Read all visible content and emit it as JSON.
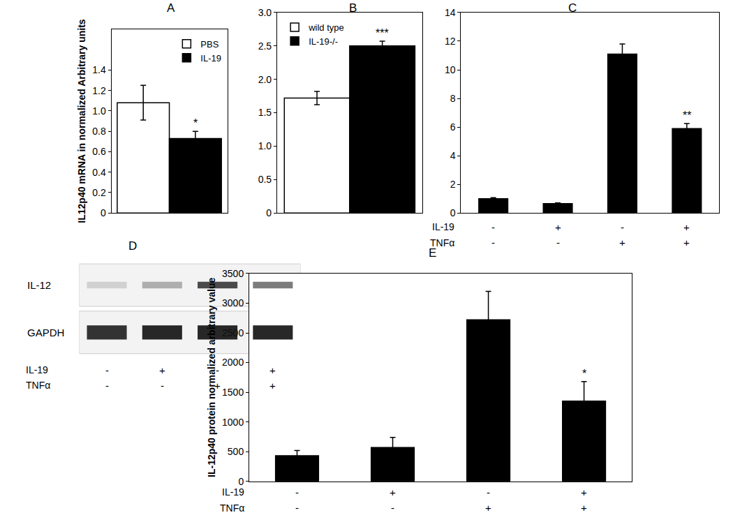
{
  "chart_data": [
    {
      "title": "A",
      "type": "bar",
      "y_label": "IL12p40 mRNA in normalized Arbitrary units",
      "categories": [
        null
      ],
      "series": [
        {
          "name": "PBS",
          "color": "#ffffff",
          "values": [
            1.08
          ],
          "errors": [
            0.17
          ]
        },
        {
          "name": "IL-19",
          "color": "#000000",
          "values": [
            0.73
          ],
          "errors": [
            0.07
          ]
        }
      ],
      "ylim": [
        0,
        1.8
      ],
      "yticks": [
        0,
        0.2,
        0.4,
        0.6,
        0.8,
        {
          "value": 1,
          "label": "1.0"
        },
        1.2,
        1.4
      ],
      "legend": "upper right",
      "annotations": [
        {
          "text": "*",
          "series": "IL-19",
          "index": 0
        }
      ]
    },
    {
      "title": "B",
      "type": "bar",
      "categories": [
        null
      ],
      "series": [
        {
          "name": "wild type",
          "color": "#ffffff",
          "values": [
            1.72
          ],
          "errors": [
            0.1
          ]
        },
        {
          "name": "IL-19-/-",
          "color": "#000000",
          "values": [
            2.5
          ],
          "errors": [
            0.07
          ]
        }
      ],
      "ylim": [
        0,
        3
      ],
      "yticks": [
        0,
        0.5,
        {
          "value": 1,
          "label": "1.0"
        },
        1.5,
        {
          "value": 2,
          "label": "2.0"
        },
        2.5,
        {
          "value": 3,
          "label": "3.0"
        }
      ],
      "legend": "upper left",
      "annotations": [
        {
          "text": "***",
          "series": "IL-19-/-",
          "index": 0
        }
      ]
    },
    {
      "title": "C",
      "type": "bar",
      "categories": [
        null,
        null,
        null,
        null
      ],
      "values": [
        1.0,
        0.65,
        11.1,
        5.9
      ],
      "errors": [
        0.07,
        0.05,
        0.7,
        0.35
      ],
      "color": "#000000",
      "ylim": [
        0,
        14
      ],
      "yticks": [
        0,
        2,
        4,
        6,
        8,
        10,
        12,
        14
      ],
      "conditions": [
        {
          "name": "IL-19",
          "signs": [
            "-",
            "+",
            "-",
            "+"
          ]
        },
        {
          "name": "TNFα",
          "signs": [
            "-",
            "-",
            "+",
            "+"
          ]
        }
      ],
      "annotations": [
        {
          "text": "**",
          "index": 3
        }
      ]
    },
    {
      "title": "D",
      "type": "blot",
      "rows": [
        {
          "label": "IL-12",
          "intensity": [
            0.15,
            0.3,
            0.75,
            0.55
          ]
        },
        {
          "label": "GAPDH",
          "intensity": [
            0.85,
            0.9,
            0.9,
            0.9
          ]
        }
      ],
      "conditions": [
        {
          "name": "IL-19",
          "signs": [
            "-",
            "+",
            "-",
            "+"
          ]
        },
        {
          "name": "TNFα",
          "signs": [
            "-",
            "-",
            "+",
            "+"
          ]
        }
      ]
    },
    {
      "title": "E",
      "type": "bar",
      "y_label": "IL-12p40 protein normalized arbitrary value",
      "categories": [
        null,
        null,
        null,
        null
      ],
      "values": [
        430,
        570,
        2720,
        1350
      ],
      "errors": [
        90,
        170,
        480,
        330
      ],
      "color": "#000000",
      "ylim": [
        0,
        3500
      ],
      "yticks": [
        0,
        500,
        1000,
        1500,
        2000,
        2500,
        3000,
        3500
      ],
      "conditions": [
        {
          "name": "IL-19",
          "signs": [
            "-",
            "+",
            "-",
            "+"
          ]
        },
        {
          "name": "TNFα",
          "signs": [
            "-",
            "-",
            "+",
            "+"
          ]
        }
      ],
      "annotations": [
        {
          "text": "*",
          "index": 3
        }
      ]
    }
  ]
}
